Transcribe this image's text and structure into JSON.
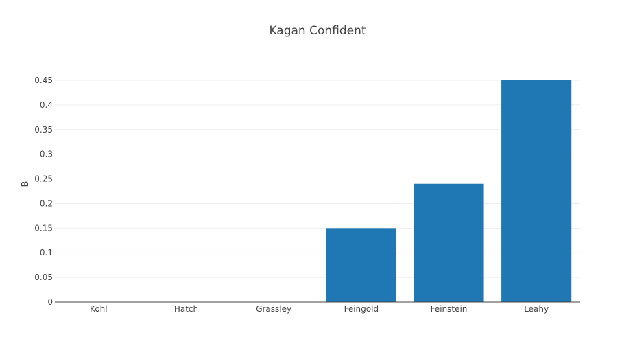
{
  "chart_data": {
    "type": "bar",
    "title": "Kagan Confident",
    "xlabel": "",
    "ylabel": "B",
    "categories": [
      "Kohl",
      "Hatch",
      "Grassley",
      "Feingold",
      "Feinstein",
      "Leahy"
    ],
    "values": [
      0,
      0,
      0,
      0.15,
      0.24,
      0.45
    ],
    "ylim": [
      0,
      0.45
    ],
    "yticks": [
      0,
      0.05,
      0.1,
      0.15,
      0.2,
      0.25,
      0.3,
      0.35,
      0.4,
      0.45
    ],
    "ytick_labels": [
      "0",
      "0.05",
      "0.1",
      "0.15",
      "0.2",
      "0.25",
      "0.3",
      "0.35",
      "0.4",
      "0.45"
    ],
    "bar_color": "#1f77b4",
    "grid": true,
    "legend": "none"
  }
}
